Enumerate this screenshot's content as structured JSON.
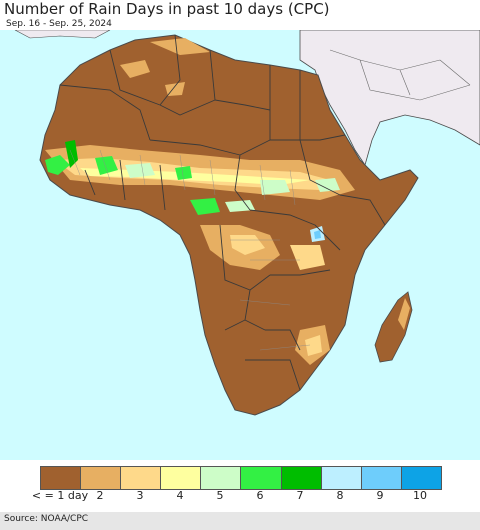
{
  "title": "Number of Rain Days in past 10 days (CPC)",
  "subtitle": "Sep. 16 - Sep. 25, 2024",
  "source": "Source: NOAA/CPC",
  "colors": {
    "ocean": "#cffcff",
    "outside_region": "#efeaf0",
    "border": "#4a4a4a",
    "subregion_border": "#8a8a8a"
  },
  "legend": {
    "items": [
      {
        "label": "< = 1 day",
        "color": "#a0612f"
      },
      {
        "label": "2",
        "color": "#e7af62"
      },
      {
        "label": "3",
        "color": "#fed98a"
      },
      {
        "label": "4",
        "color": "#feff9f"
      },
      {
        "label": "5",
        "color": "#cdfdc8"
      },
      {
        "label": "6",
        "color": "#33f044"
      },
      {
        "label": "7",
        "color": "#00bd00"
      },
      {
        "label": "8",
        "color": "#bdefff"
      },
      {
        "label": "9",
        "color": "#6ecdfb"
      },
      {
        "label": "10",
        "color": "#0da3e6"
      }
    ]
  }
}
